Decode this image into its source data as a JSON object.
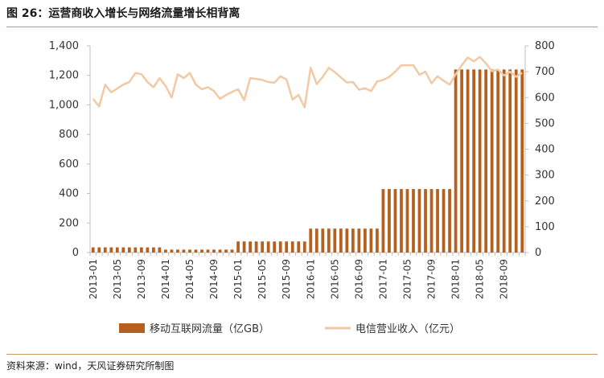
{
  "figure": {
    "title": "图 26：运营商收入增长与网络流量增长相背离",
    "source": "资料来源：wind，天风证券研究所制图"
  },
  "colors": {
    "bar": "#b5601e",
    "line": "#f2c9a4",
    "rule": "#c69a62"
  },
  "chart_data": {
    "type": "bar+line",
    "left_axis": {
      "ylim": [
        0,
        1400
      ],
      "ticks": [
        "0",
        "200",
        "400",
        "600",
        "800",
        "1,000",
        "1,200",
        "1,400"
      ]
    },
    "right_axis": {
      "ylim": [
        0,
        800
      ],
      "ticks": [
        "0",
        "100",
        "200",
        "300",
        "400",
        "500",
        "600",
        "700",
        "800"
      ]
    },
    "x_tick_labels": [
      "2013-01",
      "2013-05",
      "2013-09",
      "2014-01",
      "2014-05",
      "2014-09",
      "2015-01",
      "2015-05",
      "2015-09",
      "2016-01",
      "2016-05",
      "2016-09",
      "2017-01",
      "2017-05",
      "2017-09",
      "2018-01",
      "2018-05",
      "2018-09"
    ],
    "legend_position": "bottom",
    "series": [
      {
        "name": "移动互联网流量（亿GB）",
        "type": "bar",
        "axis": "left",
        "values": [
          35,
          35,
          35,
          35,
          35,
          35,
          35,
          35,
          35,
          35,
          35,
          35,
          20,
          20,
          20,
          20,
          20,
          20,
          20,
          20,
          20,
          20,
          20,
          20,
          75,
          75,
          75,
          75,
          75,
          75,
          75,
          75,
          75,
          75,
          75,
          75,
          162,
          162,
          162,
          162,
          162,
          162,
          162,
          162,
          162,
          162,
          162,
          162,
          430,
          430,
          430,
          430,
          430,
          430,
          430,
          430,
          430,
          430,
          430,
          430,
          1240,
          1240,
          1240,
          1240,
          1240,
          1240,
          1240,
          1240,
          1240,
          1240,
          1240,
          1240
        ]
      },
      {
        "name": "电信营业收入（亿元）",
        "type": "line",
        "axis": "right",
        "values": [
          595,
          565,
          650,
          620,
          635,
          650,
          660,
          695,
          690,
          660,
          640,
          675,
          645,
          600,
          690,
          675,
          695,
          650,
          632,
          640,
          625,
          595,
          610,
          622,
          632,
          590,
          675,
          672,
          668,
          660,
          657,
          682,
          670,
          592,
          610,
          562,
          715,
          652,
          680,
          715,
          698,
          678,
          658,
          660,
          630,
          636,
          625,
          662,
          668,
          680,
          700,
          725,
          725,
          725,
          688,
          700,
          655,
          682,
          665,
          650,
          690,
          725,
          755,
          740,
          757,
          732,
          702,
          708,
          685,
          700,
          680,
          695
        ]
      }
    ]
  }
}
